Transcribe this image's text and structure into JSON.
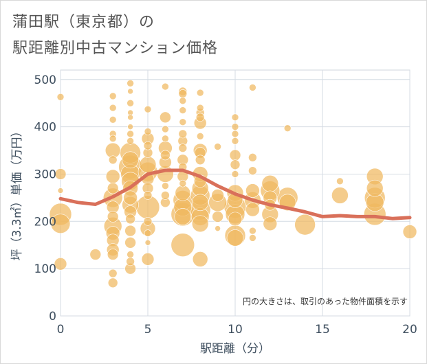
{
  "title_line1": "蒲田駅（東京都）の",
  "title_line2": "駅距離別中古マンション価格",
  "chart_data": {
    "type": "scatter",
    "xlabel": "駅距離（分）",
    "ylabel": "坪（3.3㎡）単価（万円）",
    "xlim": [
      0,
      20
    ],
    "ylim": [
      0,
      520
    ],
    "xticks": [
      0,
      5,
      10,
      15,
      20
    ],
    "yticks": [
      0,
      100,
      200,
      300,
      400,
      500
    ],
    "xtick_labels": [
      "0",
      "5",
      "10",
      "15",
      "20"
    ],
    "ytick_labels": [
      "0",
      "100",
      "200",
      "300",
      "400",
      "500"
    ],
    "annotation": "円の大きさは、取引のあった物件面積を示す",
    "bubble_color": "#f0b860",
    "line_color": "#d9705a",
    "trend_line": {
      "x": [
        0,
        1,
        2,
        3,
        4,
        5,
        6,
        7,
        8,
        9,
        10,
        11,
        12,
        13,
        14,
        15,
        16,
        17,
        18,
        19,
        20
      ],
      "y": [
        248,
        240,
        236,
        252,
        272,
        300,
        308,
        308,
        295,
        275,
        258,
        245,
        235,
        228,
        220,
        210,
        212,
        210,
        210,
        206,
        208
      ]
    },
    "points": [
      {
        "x": 0,
        "y": 215,
        "s": 16
      },
      {
        "x": 0,
        "y": 195,
        "s": 14
      },
      {
        "x": 0,
        "y": 110,
        "s": 9
      },
      {
        "x": 0,
        "y": 300,
        "s": 8
      },
      {
        "x": 0,
        "y": 463,
        "s": 5
      },
      {
        "x": 0,
        "y": 265,
        "s": 4
      },
      {
        "x": 2,
        "y": 130,
        "s": 8
      },
      {
        "x": 3,
        "y": 465,
        "s": 5
      },
      {
        "x": 3,
        "y": 440,
        "s": 5
      },
      {
        "x": 3,
        "y": 415,
        "s": 5
      },
      {
        "x": 3,
        "y": 385,
        "s": 5
      },
      {
        "x": 3,
        "y": 375,
        "s": 5
      },
      {
        "x": 3,
        "y": 350,
        "s": 11
      },
      {
        "x": 3,
        "y": 330,
        "s": 6
      },
      {
        "x": 3,
        "y": 295,
        "s": 10
      },
      {
        "x": 3,
        "y": 270,
        "s": 8
      },
      {
        "x": 3,
        "y": 250,
        "s": 14
      },
      {
        "x": 3,
        "y": 230,
        "s": 9
      },
      {
        "x": 3,
        "y": 210,
        "s": 8
      },
      {
        "x": 3,
        "y": 190,
        "s": 13
      },
      {
        "x": 3,
        "y": 175,
        "s": 10
      },
      {
        "x": 3,
        "y": 160,
        "s": 9
      },
      {
        "x": 3,
        "y": 140,
        "s": 9
      },
      {
        "x": 3,
        "y": 130,
        "s": 8
      },
      {
        "x": 3,
        "y": 90,
        "s": 6
      },
      {
        "x": 3,
        "y": 70,
        "s": 7
      },
      {
        "x": 4,
        "y": 492,
        "s": 5
      },
      {
        "x": 4,
        "y": 475,
        "s": 4
      },
      {
        "x": 4,
        "y": 450,
        "s": 5
      },
      {
        "x": 4,
        "y": 430,
        "s": 4
      },
      {
        "x": 4,
        "y": 420,
        "s": 4
      },
      {
        "x": 4,
        "y": 400,
        "s": 4
      },
      {
        "x": 4,
        "y": 385,
        "s": 5
      },
      {
        "x": 4,
        "y": 370,
        "s": 5
      },
      {
        "x": 4,
        "y": 345,
        "s": 15
      },
      {
        "x": 4,
        "y": 330,
        "s": 12
      },
      {
        "x": 4,
        "y": 315,
        "s": 17
      },
      {
        "x": 4,
        "y": 300,
        "s": 14
      },
      {
        "x": 4,
        "y": 285,
        "s": 13
      },
      {
        "x": 4,
        "y": 270,
        "s": 11
      },
      {
        "x": 4,
        "y": 250,
        "s": 10
      },
      {
        "x": 4,
        "y": 235,
        "s": 12
      },
      {
        "x": 4,
        "y": 220,
        "s": 9
      },
      {
        "x": 4,
        "y": 205,
        "s": 7
      },
      {
        "x": 4,
        "y": 180,
        "s": 8
      },
      {
        "x": 4,
        "y": 155,
        "s": 8
      },
      {
        "x": 4,
        "y": 130,
        "s": 5
      },
      {
        "x": 4,
        "y": 115,
        "s": 6
      },
      {
        "x": 4,
        "y": 100,
        "s": 8
      },
      {
        "x": 5,
        "y": 437,
        "s": 5
      },
      {
        "x": 5,
        "y": 390,
        "s": 5
      },
      {
        "x": 5,
        "y": 375,
        "s": 9
      },
      {
        "x": 5,
        "y": 360,
        "s": 6
      },
      {
        "x": 5,
        "y": 345,
        "s": 7
      },
      {
        "x": 5,
        "y": 320,
        "s": 12
      },
      {
        "x": 5,
        "y": 305,
        "s": 14
      },
      {
        "x": 5,
        "y": 290,
        "s": 9
      },
      {
        "x": 5,
        "y": 270,
        "s": 8
      },
      {
        "x": 5,
        "y": 255,
        "s": 6
      },
      {
        "x": 5,
        "y": 230,
        "s": 17
      },
      {
        "x": 5,
        "y": 200,
        "s": 6
      },
      {
        "x": 5,
        "y": 185,
        "s": 11
      },
      {
        "x": 5,
        "y": 175,
        "s": 5
      },
      {
        "x": 5,
        "y": 155,
        "s": 4
      },
      {
        "x": 5,
        "y": 120,
        "s": 9
      },
      {
        "x": 6,
        "y": 485,
        "s": 5
      },
      {
        "x": 6,
        "y": 420,
        "s": 8
      },
      {
        "x": 6,
        "y": 395,
        "s": 5
      },
      {
        "x": 6,
        "y": 375,
        "s": 5
      },
      {
        "x": 6,
        "y": 355,
        "s": 10
      },
      {
        "x": 6,
        "y": 340,
        "s": 7
      },
      {
        "x": 6,
        "y": 325,
        "s": 9
      },
      {
        "x": 6,
        "y": 300,
        "s": 12
      },
      {
        "x": 6,
        "y": 275,
        "s": 5
      },
      {
        "x": 6,
        "y": 255,
        "s": 6
      },
      {
        "x": 6,
        "y": 240,
        "s": 7
      },
      {
        "x": 7,
        "y": 475,
        "s": 6
      },
      {
        "x": 7,
        "y": 470,
        "s": 6
      },
      {
        "x": 7,
        "y": 455,
        "s": 5
      },
      {
        "x": 7,
        "y": 435,
        "s": 5
      },
      {
        "x": 7,
        "y": 410,
        "s": 5
      },
      {
        "x": 7,
        "y": 385,
        "s": 6
      },
      {
        "x": 7,
        "y": 370,
        "s": 7
      },
      {
        "x": 7,
        "y": 355,
        "s": 6
      },
      {
        "x": 7,
        "y": 330,
        "s": 8
      },
      {
        "x": 7,
        "y": 315,
        "s": 6
      },
      {
        "x": 7,
        "y": 295,
        "s": 8
      },
      {
        "x": 7,
        "y": 280,
        "s": 5
      },
      {
        "x": 7,
        "y": 260,
        "s": 11
      },
      {
        "x": 7,
        "y": 245,
        "s": 14
      },
      {
        "x": 7,
        "y": 230,
        "s": 13
      },
      {
        "x": 7,
        "y": 215,
        "s": 17
      },
      {
        "x": 7,
        "y": 210,
        "s": 12
      },
      {
        "x": 7,
        "y": 150,
        "s": 17
      },
      {
        "x": 8,
        "y": 472,
        "s": 5
      },
      {
        "x": 8,
        "y": 440,
        "s": 5
      },
      {
        "x": 8,
        "y": 430,
        "s": 6
      },
      {
        "x": 8,
        "y": 420,
        "s": 6
      },
      {
        "x": 8,
        "y": 408,
        "s": 9
      },
      {
        "x": 8,
        "y": 380,
        "s": 5
      },
      {
        "x": 8,
        "y": 350,
        "s": 10
      },
      {
        "x": 8,
        "y": 345,
        "s": 8
      },
      {
        "x": 8,
        "y": 330,
        "s": 7
      },
      {
        "x": 8,
        "y": 300,
        "s": 11
      },
      {
        "x": 8,
        "y": 285,
        "s": 9
      },
      {
        "x": 8,
        "y": 270,
        "s": 12
      },
      {
        "x": 8,
        "y": 255,
        "s": 14
      },
      {
        "x": 8,
        "y": 240,
        "s": 12
      },
      {
        "x": 8,
        "y": 225,
        "s": 15
      },
      {
        "x": 8,
        "y": 210,
        "s": 13
      },
      {
        "x": 8,
        "y": 195,
        "s": 12
      },
      {
        "x": 8,
        "y": 120,
        "s": 11
      },
      {
        "x": 9,
        "y": 358,
        "s": 5
      },
      {
        "x": 9,
        "y": 255,
        "s": 9
      },
      {
        "x": 9,
        "y": 240,
        "s": 13
      },
      {
        "x": 9,
        "y": 210,
        "s": 8
      },
      {
        "x": 9,
        "y": 185,
        "s": 4
      },
      {
        "x": 10,
        "y": 420,
        "s": 5
      },
      {
        "x": 10,
        "y": 400,
        "s": 5
      },
      {
        "x": 10,
        "y": 385,
        "s": 5
      },
      {
        "x": 10,
        "y": 370,
        "s": 5
      },
      {
        "x": 10,
        "y": 340,
        "s": 8
      },
      {
        "x": 10,
        "y": 320,
        "s": 7
      },
      {
        "x": 10,
        "y": 300,
        "s": 5
      },
      {
        "x": 10,
        "y": 260,
        "s": 12
      },
      {
        "x": 10,
        "y": 245,
        "s": 11
      },
      {
        "x": 10,
        "y": 230,
        "s": 16
      },
      {
        "x": 10,
        "y": 215,
        "s": 14
      },
      {
        "x": 10,
        "y": 205,
        "s": 10
      },
      {
        "x": 10,
        "y": 170,
        "s": 15
      },
      {
        "x": 10,
        "y": 165,
        "s": 12
      },
      {
        "x": 11,
        "y": 483,
        "s": 5
      },
      {
        "x": 11,
        "y": 335,
        "s": 6
      },
      {
        "x": 11,
        "y": 307,
        "s": 6
      },
      {
        "x": 11,
        "y": 265,
        "s": 10
      },
      {
        "x": 11,
        "y": 245,
        "s": 12
      },
      {
        "x": 11,
        "y": 225,
        "s": 10
      },
      {
        "x": 11,
        "y": 180,
        "s": 5
      },
      {
        "x": 11,
        "y": 165,
        "s": 5
      },
      {
        "x": 12,
        "y": 280,
        "s": 12
      },
      {
        "x": 12,
        "y": 265,
        "s": 14
      },
      {
        "x": 12,
        "y": 250,
        "s": 10
      },
      {
        "x": 12,
        "y": 235,
        "s": 8
      },
      {
        "x": 12,
        "y": 215,
        "s": 12
      },
      {
        "x": 12,
        "y": 195,
        "s": 10
      },
      {
        "x": 13,
        "y": 397,
        "s": 5
      },
      {
        "x": 13,
        "y": 250,
        "s": 15
      },
      {
        "x": 13,
        "y": 240,
        "s": 12
      },
      {
        "x": 14,
        "y": 193,
        "s": 15
      },
      {
        "x": 16,
        "y": 285,
        "s": 5
      },
      {
        "x": 16,
        "y": 255,
        "s": 12
      },
      {
        "x": 18,
        "y": 295,
        "s": 12
      },
      {
        "x": 18,
        "y": 270,
        "s": 12
      },
      {
        "x": 18,
        "y": 250,
        "s": 15
      },
      {
        "x": 18,
        "y": 240,
        "s": 13
      },
      {
        "x": 18,
        "y": 215,
        "s": 16
      },
      {
        "x": 20,
        "y": 178,
        "s": 10
      }
    ]
  }
}
